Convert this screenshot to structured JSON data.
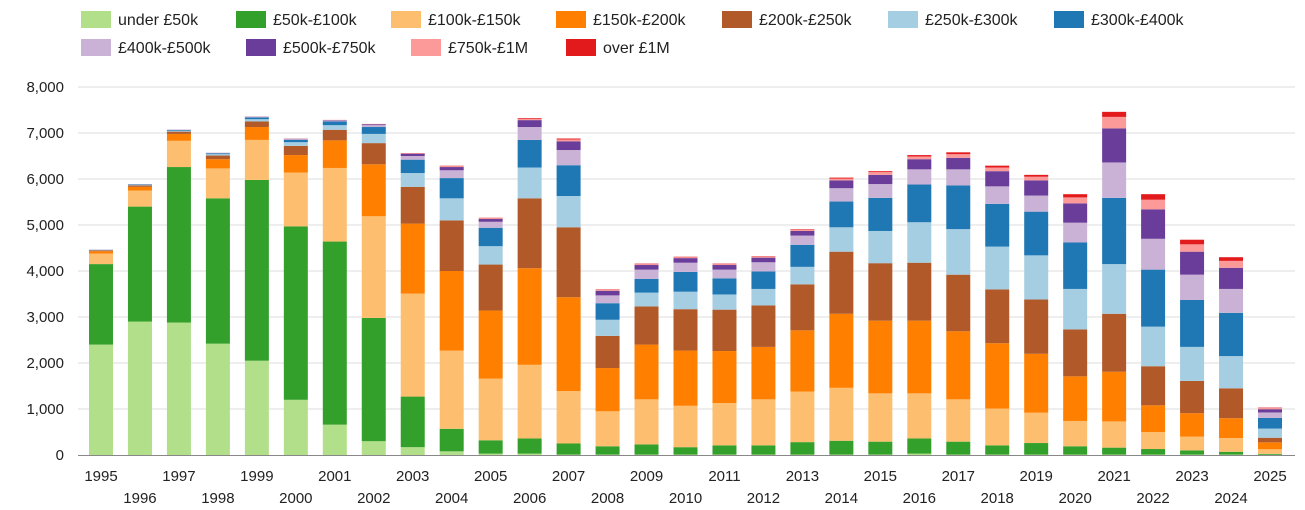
{
  "chart_data": {
    "type": "bar",
    "stacked": true,
    "title": "",
    "xlabel": "",
    "ylabel": "",
    "ylim": [
      0,
      8000
    ],
    "yticks": [
      0,
      1000,
      2000,
      3000,
      4000,
      5000,
      6000,
      7000,
      8000
    ],
    "ytick_labels": [
      "0",
      "1,000",
      "2,000",
      "3,000",
      "4,000",
      "5,000",
      "6,000",
      "7,000",
      "8,000"
    ],
    "grid": true,
    "legend_position": "top-left",
    "categories": [
      "1995",
      "1996",
      "1997",
      "1998",
      "1999",
      "2000",
      "2001",
      "2002",
      "2003",
      "2004",
      "2005",
      "2006",
      "2007",
      "2008",
      "2009",
      "2010",
      "2011",
      "2012",
      "2013",
      "2014",
      "2015",
      "2016",
      "2017",
      "2018",
      "2019",
      "2020",
      "2021",
      "2022",
      "2023",
      "2024",
      "2025"
    ],
    "series": [
      {
        "name": "under £50k",
        "color": "#b2df8a",
        "values": [
          2400,
          2900,
          2880,
          2420,
          2050,
          1200,
          660,
          300,
          170,
          80,
          30,
          30,
          10,
          10,
          10,
          10,
          10,
          10,
          10,
          10,
          10,
          30,
          10,
          10,
          10,
          10,
          10,
          10,
          10,
          10,
          5
        ]
      },
      {
        "name": "£50k-£100k",
        "color": "#33a02c",
        "values": [
          1750,
          2500,
          3380,
          3160,
          3930,
          3770,
          3980,
          2680,
          1100,
          490,
          290,
          330,
          240,
          180,
          220,
          160,
          200,
          200,
          270,
          300,
          280,
          330,
          280,
          200,
          250,
          180,
          150,
          120,
          90,
          60,
          20
        ]
      },
      {
        "name": "£100k-£150k",
        "color": "#fdbf6f",
        "values": [
          230,
          350,
          570,
          650,
          870,
          1170,
          1600,
          2210,
          2240,
          1700,
          1340,
          1600,
          1140,
          760,
          980,
          900,
          920,
          1000,
          1100,
          1150,
          1050,
          980,
          920,
          800,
          660,
          550,
          570,
          370,
          300,
          300,
          100
        ]
      },
      {
        "name": "£150k-£200k",
        "color": "#ff7f00",
        "values": [
          50,
          80,
          150,
          200,
          280,
          380,
          600,
          1130,
          1520,
          1730,
          1480,
          2100,
          2040,
          940,
          1190,
          1200,
          1130,
          1140,
          1330,
          1610,
          1580,
          1580,
          1480,
          1420,
          1280,
          970,
          1080,
          580,
          510,
          430,
          150
        ]
      },
      {
        "name": "£200k-£250k",
        "color": "#b15928",
        "values": [
          20,
          30,
          50,
          80,
          120,
          200,
          230,
          460,
          800,
          1100,
          1000,
          1520,
          1520,
          700,
          830,
          900,
          900,
          900,
          1000,
          1350,
          1250,
          1260,
          1230,
          1170,
          1180,
          1020,
          1260,
          850,
          700,
          650,
          100
        ]
      },
      {
        "name": "£250k-£300k",
        "color": "#a6cee3",
        "values": [
          5,
          10,
          20,
          30,
          50,
          80,
          100,
          200,
          300,
          480,
          400,
          670,
          680,
          350,
          300,
          380,
          330,
          360,
          380,
          530,
          700,
          880,
          990,
          930,
          960,
          880,
          1080,
          860,
          740,
          700,
          200
        ]
      },
      {
        "name": "£300k-£400k",
        "color": "#1f78b4",
        "values": [
          5,
          10,
          15,
          20,
          40,
          50,
          80,
          150,
          290,
          440,
          400,
          600,
          670,
          360,
          300,
          430,
          350,
          380,
          480,
          560,
          720,
          820,
          950,
          930,
          950,
          1010,
          1440,
          1240,
          1020,
          940,
          230
        ]
      },
      {
        "name": "£400k-£500k",
        "color": "#cab2d6",
        "values": [
          2,
          3,
          5,
          5,
          10,
          15,
          20,
          40,
          80,
          170,
          130,
          280,
          330,
          170,
          200,
          200,
          190,
          200,
          200,
          290,
          300,
          330,
          350,
          380,
          350,
          430,
          770,
          670,
          550,
          520,
          120
        ]
      },
      {
        "name": "£500k-£750k",
        "color": "#6a3d9a",
        "values": [
          1,
          2,
          3,
          3,
          5,
          10,
          10,
          20,
          50,
          70,
          60,
          150,
          190,
          100,
          100,
          100,
          100,
          100,
          100,
          170,
          200,
          220,
          250,
          330,
          330,
          420,
          740,
          640,
          500,
          460,
          70
        ]
      },
      {
        "name": "£750k-£1M",
        "color": "#fb9a99",
        "values": [
          0,
          1,
          1,
          1,
          2,
          3,
          4,
          5,
          10,
          20,
          20,
          30,
          40,
          20,
          20,
          20,
          20,
          20,
          30,
          40,
          60,
          60,
          80,
          80,
          80,
          130,
          250,
          210,
          160,
          150,
          25
        ]
      },
      {
        "name": "over £1M",
        "color": "#e31a1c",
        "values": [
          0,
          0,
          0,
          0,
          1,
          1,
          1,
          2,
          5,
          8,
          7,
          15,
          20,
          10,
          10,
          10,
          10,
          10,
          10,
          20,
          20,
          30,
          40,
          40,
          40,
          70,
          110,
          120,
          100,
          80,
          10
        ]
      }
    ]
  }
}
